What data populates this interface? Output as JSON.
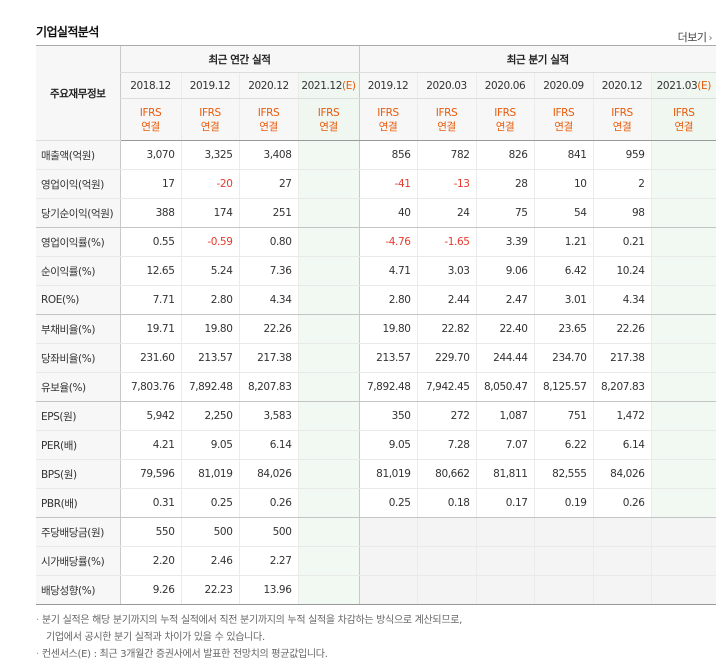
{
  "title": "기업실적분석",
  "more_label": "더보기",
  "header": {
    "row_label": "주요재무정보",
    "annual_label": "최근 연간 실적",
    "quarter_label": "최근 분기 실적",
    "annual_periods": [
      "2018.12",
      "2019.12",
      "2020.12",
      "2021.12(E)"
    ],
    "quarter_periods": [
      "2019.12",
      "2020.03",
      "2020.06",
      "2020.09",
      "2020.12",
      "2021.03(E)"
    ],
    "ifrs_top": "IFRS",
    "ifrs_bottom": "연결"
  },
  "rows": [
    {
      "label": "매출액(억원)",
      "annual": [
        "3,070",
        "3,325",
        "3,408",
        ""
      ],
      "quarter": [
        "856",
        "782",
        "826",
        "841",
        "959",
        ""
      ]
    },
    {
      "label": "영업이익(억원)",
      "annual": [
        "17",
        "-20",
        "27",
        ""
      ],
      "quarter": [
        "-41",
        "-13",
        "28",
        "10",
        "2",
        ""
      ]
    },
    {
      "label": "당기순이익(억원)",
      "annual": [
        "388",
        "174",
        "251",
        ""
      ],
      "quarter": [
        "40",
        "24",
        "75",
        "54",
        "98",
        ""
      ]
    },
    {
      "label": "영업이익률(%)",
      "annual": [
        "0.55",
        "-0.59",
        "0.80",
        ""
      ],
      "quarter": [
        "-4.76",
        "-1.65",
        "3.39",
        "1.21",
        "0.21",
        ""
      ]
    },
    {
      "label": "순이익률(%)",
      "annual": [
        "12.65",
        "5.24",
        "7.36",
        ""
      ],
      "quarter": [
        "4.71",
        "3.03",
        "9.06",
        "6.42",
        "10.24",
        ""
      ]
    },
    {
      "label": "ROE(%)",
      "annual": [
        "7.71",
        "2.80",
        "4.34",
        ""
      ],
      "quarter": [
        "2.80",
        "2.44",
        "2.47",
        "3.01",
        "4.34",
        ""
      ]
    },
    {
      "label": "부채비율(%)",
      "annual": [
        "19.71",
        "19.80",
        "22.26",
        ""
      ],
      "quarter": [
        "19.80",
        "22.82",
        "22.40",
        "23.65",
        "22.26",
        ""
      ]
    },
    {
      "label": "당좌비율(%)",
      "annual": [
        "231.60",
        "213.57",
        "217.38",
        ""
      ],
      "quarter": [
        "213.57",
        "229.70",
        "244.44",
        "234.70",
        "217.38",
        ""
      ]
    },
    {
      "label": "유보율(%)",
      "annual": [
        "7,803.76",
        "7,892.48",
        "8,207.83",
        ""
      ],
      "quarter": [
        "7,892.48",
        "7,942.45",
        "8,050.47",
        "8,125.57",
        "8,207.83",
        ""
      ]
    },
    {
      "label": "EPS(원)",
      "annual": [
        "5,942",
        "2,250",
        "3,583",
        ""
      ],
      "quarter": [
        "350",
        "272",
        "1,087",
        "751",
        "1,472",
        ""
      ]
    },
    {
      "label": "PER(배)",
      "annual": [
        "4.21",
        "9.05",
        "6.14",
        ""
      ],
      "quarter": [
        "9.05",
        "7.28",
        "7.07",
        "6.22",
        "6.14",
        ""
      ]
    },
    {
      "label": "BPS(원)",
      "annual": [
        "79,596",
        "81,019",
        "84,026",
        ""
      ],
      "quarter": [
        "81,019",
        "80,662",
        "81,811",
        "82,555",
        "84,026",
        ""
      ]
    },
    {
      "label": "PBR(배)",
      "annual": [
        "0.31",
        "0.25",
        "0.26",
        ""
      ],
      "quarter": [
        "0.25",
        "0.18",
        "0.17",
        "0.19",
        "0.26",
        ""
      ]
    },
    {
      "label": "주당배당금(원)",
      "annual": [
        "550",
        "500",
        "500",
        ""
      ],
      "quarter": [
        "",
        "",
        "",
        "",
        "",
        ""
      ]
    },
    {
      "label": "시가배당률(%)",
      "annual": [
        "2.20",
        "2.46",
        "2.27",
        ""
      ],
      "quarter": [
        "",
        "",
        "",
        "",
        "",
        ""
      ]
    },
    {
      "label": "배당성향(%)",
      "annual": [
        "9.26",
        "22.23",
        "13.96",
        ""
      ],
      "quarter": [
        "",
        "",
        "",
        "",
        "",
        ""
      ]
    }
  ],
  "notes": {
    "line1": "분기 실적은 해당 분기까지의 누적 실적에서 직전 분기까지의 누적 실적을 차감하는 방식으로 계산되므로,",
    "line2": "기업에서 공시한 분기 실적과 차이가 있을 수 있습니다.",
    "line3": "컨센서스(E) : 최근 3개월간 증권사에서 발표한 전망치의 평균값입니다."
  },
  "colors": {
    "accent": "#e85b0a",
    "negative": "#e63a2d"
  }
}
